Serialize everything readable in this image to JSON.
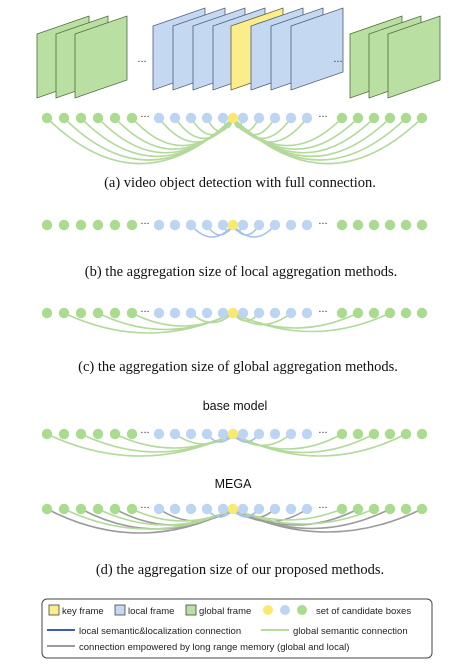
{
  "colors": {
    "global": "#b9e0a2",
    "global_stroke": "#4f6b3a",
    "local": "#c4d8f1",
    "local_stroke": "#4f5d7a",
    "key": "#fbec8c",
    "key_stroke": "#6b6030",
    "dot_global": "#a9dc8f",
    "dot_local": "#bcd5f3",
    "dot_key": "#fbe96f",
    "line_global": "#b3d99b",
    "line_local": "#a7c0ea",
    "line_memory": "#9b9b9b",
    "line_local_semantic": "#3e5bbf"
  },
  "ellipsis": "...",
  "captions": {
    "a": "(a)  video object detection with full connection.",
    "b": "(b)  the aggregation size of local aggregation methods.",
    "c": "(c)  the aggregation size of global aggregation methods.",
    "d": "(d)  the aggregation size of our proposed methods."
  },
  "labels": {
    "base_model": "base model",
    "mega": "MEGA"
  },
  "legend": {
    "key_frame": "key frame",
    "local_frame": "local frame",
    "global_frame": "global frame",
    "candidate_boxes": "set of candidate boxes",
    "local_connection": "local semantic&localization connection",
    "global_connection": "global semantic connection",
    "memory_connection": "connection empowered by long range memory (global and local)"
  }
}
